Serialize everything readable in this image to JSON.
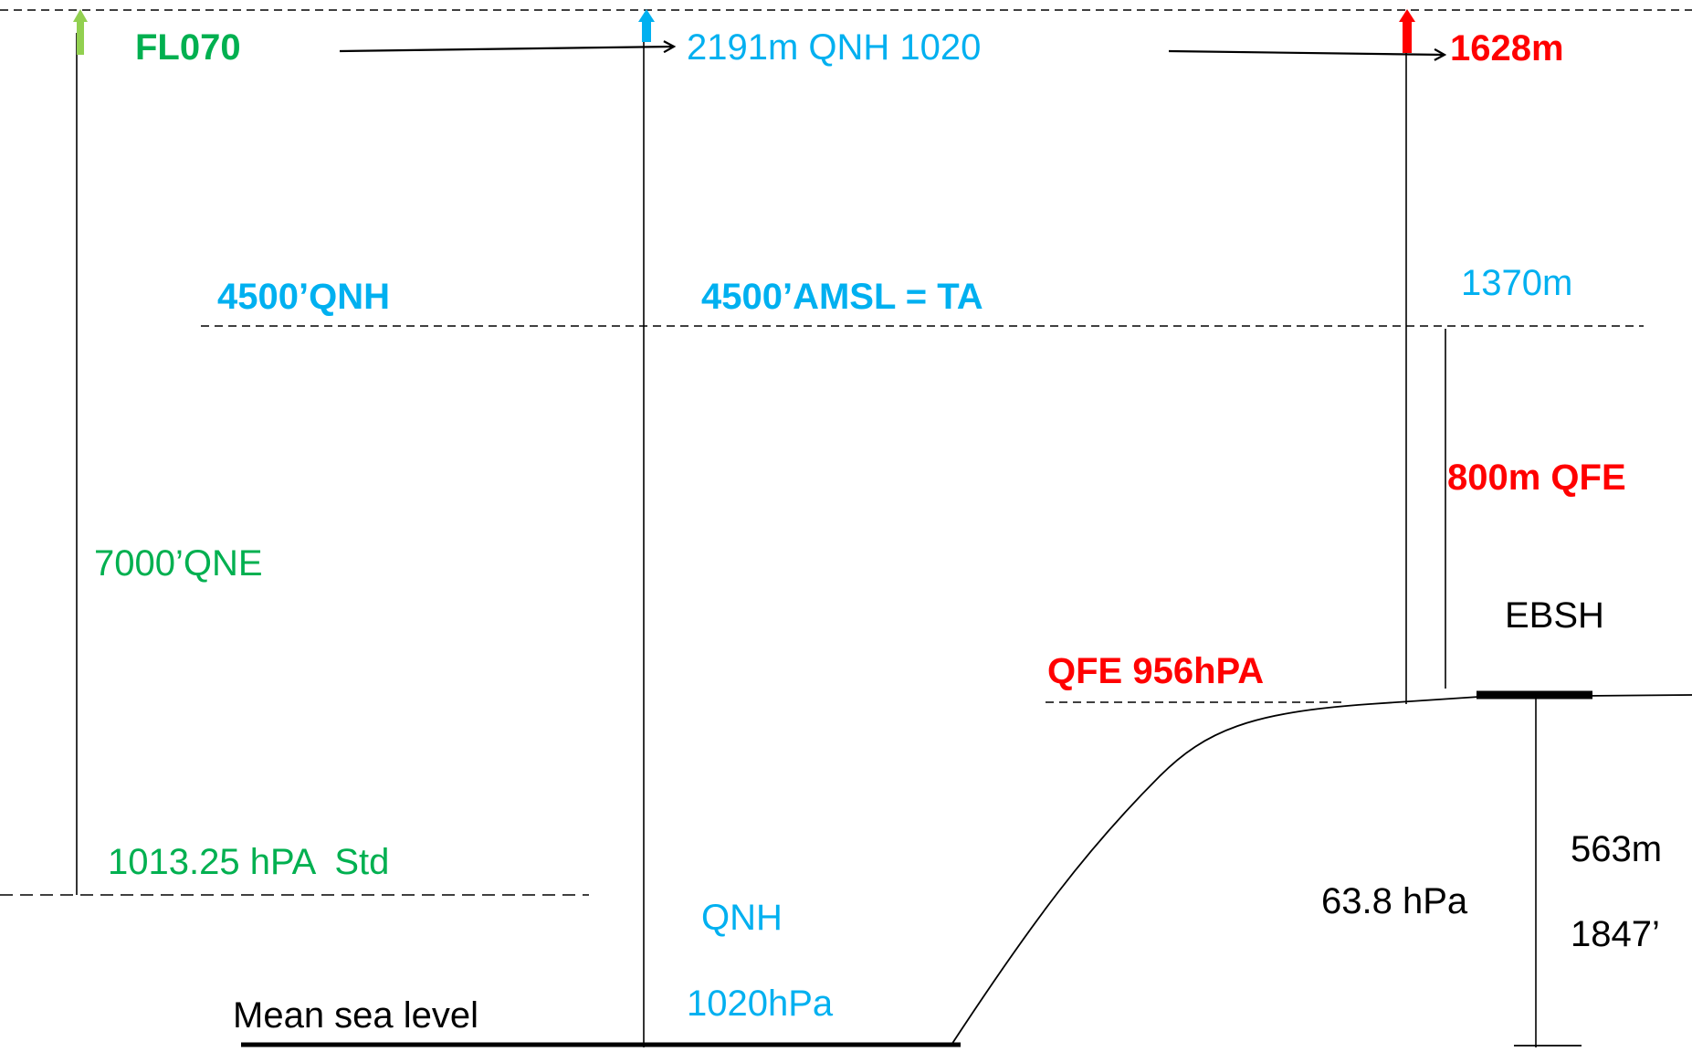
{
  "colors": {
    "std": "#00B050",
    "std_arrow": "#92D050",
    "qnh": "#00B0F0",
    "qfe": "#FF0000",
    "ink": "#000000"
  },
  "labels": {
    "fl070": "FL070",
    "qnh_top": "2191m QNH 1020",
    "qfe_top": "1628m",
    "qnh_4500": "4500’QNH",
    "amsl_ta": "4500’AMSL = TA",
    "m1370": "1370m",
    "qfe_800": "800m QFE",
    "qne_7000": "7000’QNE",
    "ebsh": "EBSH",
    "qfe_956": "QFE 956hPA",
    "std_1013": "1013.25 hPA  Std",
    "m563": "563m",
    "hpa_638": "63.8 hPa",
    "ft1847": "1847’",
    "qnh_word": "QNH",
    "msl": "Mean sea level",
    "hpa_1020": "1020hPa"
  }
}
